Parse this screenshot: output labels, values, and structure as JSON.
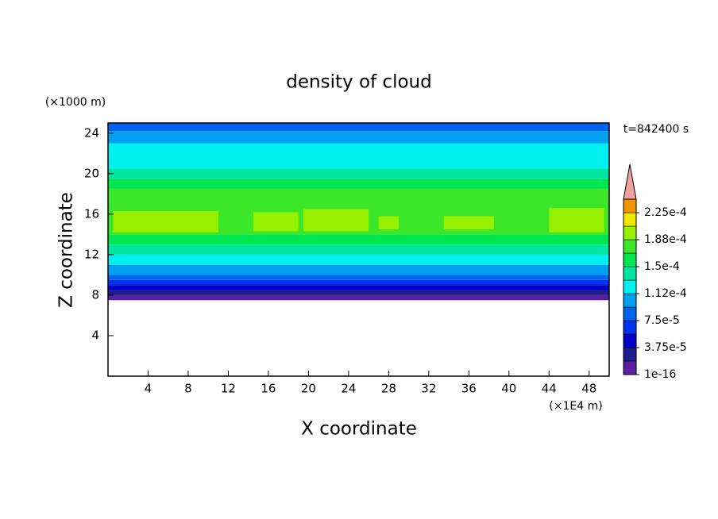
{
  "chart_data": {
    "type": "contour",
    "title": "density of cloud",
    "x_label": "X coordinate",
    "y_label": "Z coordinate",
    "x_unit": "(×1E4 m)",
    "y_unit": "(×1000 m)",
    "time_label": "t=842400 s",
    "xlim": [
      0,
      50
    ],
    "ylim": [
      0,
      25
    ],
    "xticks": [
      4,
      8,
      12,
      16,
      20,
      24,
      28,
      32,
      36,
      40,
      44,
      48
    ],
    "yticks": [
      4,
      8,
      12,
      16,
      20,
      24
    ],
    "z": [
      7.5,
      8,
      8.5,
      9,
      9.5,
      10,
      11,
      12,
      13,
      14,
      18.5,
      19.5,
      20.5,
      23,
      24.2,
      25
    ],
    "values": [
      9e-06,
      2.8e-05,
      4.7e-05,
      6.5e-05,
      8.4e-05,
      0.000103,
      0.000122,
      0.00014,
      0.00016,
      0.000178,
      0.00016,
      0.00014,
      0.000122,
      0.000103,
      8.4e-05
    ],
    "patches": [
      {
        "x": [
          0.5,
          11
        ],
        "z": [
          14.2,
          16.3
        ],
        "value": 0.000197
      },
      {
        "x": [
          14.5,
          19
        ],
        "z": [
          14.3,
          16.2
        ],
        "value": 0.000197
      },
      {
        "x": [
          19.5,
          26
        ],
        "z": [
          14.3,
          16.5
        ],
        "value": 0.000197
      },
      {
        "x": [
          27,
          29
        ],
        "z": [
          14.5,
          15.8
        ],
        "value": 0.000197
      },
      {
        "x": [
          33.5,
          38.5
        ],
        "z": [
          14.5,
          15.8
        ],
        "value": 0.000197
      },
      {
        "x": [
          44,
          49.5
        ],
        "z": [
          14.2,
          16.6
        ],
        "value": 0.000197
      }
    ],
    "levels": [
      1e-16,
      1.875e-05,
      3.75e-05,
      5.625e-05,
      7.5e-05,
      9.375e-05,
      0.0001125,
      0.00013125,
      0.00015,
      0.00016875,
      0.0001875,
      0.00020625,
      0.000225,
      0.00024375
    ],
    "colors": [
      "#5a1ea0",
      "#1e1e8c",
      "#0000c8",
      "#0032f0",
      "#0064f0",
      "#00a0f0",
      "#00f0f0",
      "#00e6a0",
      "#00e650",
      "#3ce628",
      "#96f000",
      "#f0e600",
      "#f09600",
      "#f02800"
    ],
    "extend_color": "#f0a0a0",
    "cticks": [
      {
        "value": 1e-16,
        "label": "1e-16"
      },
      {
        "value": 3.75e-05,
        "label": "3.75e-5"
      },
      {
        "value": 7.5e-05,
        "label": "7.5e-5"
      },
      {
        "value": 0.0001125,
        "label": "1.12e-4"
      },
      {
        "value": 0.00015,
        "label": "1.5e-4"
      },
      {
        "value": 0.0001875,
        "label": "1.88e-4"
      },
      {
        "value": 0.000225,
        "label": "2.25e-4"
      }
    ]
  }
}
